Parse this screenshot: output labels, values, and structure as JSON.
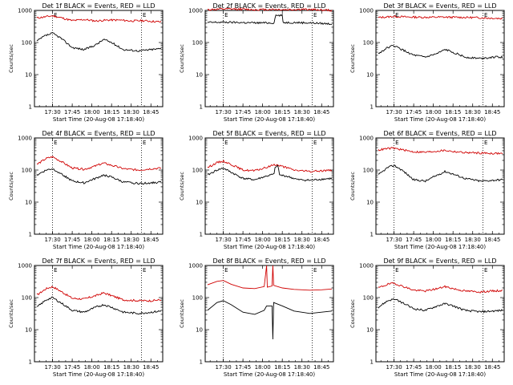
{
  "chart_data": {
    "type": "line",
    "x_tick_labels": [
      "17:30",
      "17:45",
      "18:00",
      "18:15",
      "18:30",
      "18:45"
    ],
    "y_tick_labels": [
      "1",
      "10",
      "100",
      "1000"
    ],
    "y_scale": "log",
    "ylim": [
      1,
      1000
    ],
    "x_range_hours": [
      17.27,
      18.9
    ],
    "marker_lines_hours": [
      17.5,
      18.63
    ],
    "colors": {
      "events": "#000000",
      "lld": "#d00000"
    },
    "panels": [
      {
        "title": "Det 1f BLACK = Events, RED = LLD",
        "xlabel": "Start Time (20-Aug-08 17:18:40)",
        "ylabel": "Counts/sec",
        "markers": [
          "E",
          "E"
        ],
        "lld": [
          [
            17.3,
            580
          ],
          [
            17.5,
            680
          ],
          [
            17.6,
            600
          ],
          [
            17.75,
            480
          ],
          [
            17.9,
            520
          ],
          [
            18.05,
            470
          ],
          [
            18.2,
            500
          ],
          [
            18.35,
            500
          ],
          [
            18.5,
            470
          ],
          [
            18.65,
            480
          ],
          [
            18.8,
            450
          ],
          [
            18.88,
            440
          ]
        ],
        "events": [
          [
            17.3,
            110
          ],
          [
            17.4,
            160
          ],
          [
            17.5,
            195
          ],
          [
            17.6,
            140
          ],
          [
            17.75,
            70
          ],
          [
            17.9,
            60
          ],
          [
            18.05,
            85
          ],
          [
            18.15,
            125
          ],
          [
            18.25,
            100
          ],
          [
            18.4,
            60
          ],
          [
            18.6,
            55
          ],
          [
            18.75,
            60
          ],
          [
            18.88,
            65
          ]
        ]
      },
      {
        "title": "Det 2f BLACK = Events, RED = LLD",
        "xlabel": "Start Time (20-Aug-08 17:18:40)",
        "ylabel": "Counts/sec",
        "markers": [
          "E",
          "E"
        ],
        "lld": [
          [
            17.3,
            1050
          ],
          [
            17.5,
            1100
          ],
          [
            17.7,
            1100
          ],
          [
            17.9,
            1050
          ],
          [
            18.1,
            1080
          ],
          [
            18.3,
            1050
          ],
          [
            18.5,
            1080
          ],
          [
            18.7,
            1050
          ],
          [
            18.88,
            1000
          ]
        ],
        "events": [
          [
            17.3,
            420
          ],
          [
            17.5,
            430
          ],
          [
            17.7,
            420
          ],
          [
            17.9,
            410
          ],
          [
            18.15,
            410
          ],
          [
            18.16,
            700
          ],
          [
            18.25,
            700
          ],
          [
            18.26,
            420
          ],
          [
            18.4,
            420
          ],
          [
            18.6,
            410
          ],
          [
            18.88,
            380
          ]
        ]
      },
      {
        "title": "Det 3f BLACK = Events, RED = LLD",
        "xlabel": "Start Time (20-Aug-08 17:18:40)",
        "ylabel": "Counts/sec",
        "markers": [
          "E",
          "E"
        ],
        "lld": [
          [
            17.3,
            600
          ],
          [
            17.5,
            650
          ],
          [
            17.7,
            620
          ],
          [
            17.9,
            610
          ],
          [
            18.1,
            620
          ],
          [
            18.3,
            610
          ],
          [
            18.5,
            600
          ],
          [
            18.7,
            580
          ],
          [
            18.88,
            560
          ]
        ],
        "events": [
          [
            17.3,
            45
          ],
          [
            17.42,
            70
          ],
          [
            17.5,
            80
          ],
          [
            17.6,
            60
          ],
          [
            17.75,
            40
          ],
          [
            17.9,
            35
          ],
          [
            18.05,
            45
          ],
          [
            18.15,
            60
          ],
          [
            18.25,
            50
          ],
          [
            18.4,
            35
          ],
          [
            18.6,
            32
          ],
          [
            18.75,
            35
          ],
          [
            18.88,
            35
          ]
        ]
      },
      {
        "title": "Det 4f BLACK = Events, RED = LLD",
        "xlabel": "Start Time (20-Aug-08 17:18:40)",
        "ylabel": "Counts/sec",
        "markers": [
          "E",
          "E"
        ],
        "lld": [
          [
            17.3,
            150
          ],
          [
            17.42,
            230
          ],
          [
            17.5,
            260
          ],
          [
            17.6,
            190
          ],
          [
            17.75,
            115
          ],
          [
            17.9,
            105
          ],
          [
            18.05,
            135
          ],
          [
            18.15,
            165
          ],
          [
            18.25,
            140
          ],
          [
            18.4,
            110
          ],
          [
            18.6,
            100
          ],
          [
            18.75,
            110
          ],
          [
            18.88,
            115
          ]
        ],
        "events": [
          [
            17.3,
            70
          ],
          [
            17.42,
            100
          ],
          [
            17.5,
            110
          ],
          [
            17.6,
            80
          ],
          [
            17.75,
            45
          ],
          [
            17.9,
            40
          ],
          [
            18.05,
            55
          ],
          [
            18.15,
            70
          ],
          [
            18.25,
            60
          ],
          [
            18.4,
            42
          ],
          [
            18.6,
            38
          ],
          [
            18.75,
            40
          ],
          [
            18.88,
            42
          ]
        ]
      },
      {
        "title": "Det 5f BLACK = Events, RED = LLD",
        "xlabel": "Start Time (20-Aug-08 17:18:40)",
        "ylabel": "Counts/sec",
        "markers": [
          "E",
          "E"
        ],
        "lld": [
          [
            17.3,
            120
          ],
          [
            17.42,
            170
          ],
          [
            17.5,
            190
          ],
          [
            17.6,
            150
          ],
          [
            17.75,
            100
          ],
          [
            17.9,
            95
          ],
          [
            18.05,
            120
          ],
          [
            18.15,
            150
          ],
          [
            18.25,
            130
          ],
          [
            18.4,
            100
          ],
          [
            18.6,
            90
          ],
          [
            18.75,
            95
          ],
          [
            18.88,
            100
          ]
        ],
        "events": [
          [
            17.3,
            70
          ],
          [
            17.42,
            100
          ],
          [
            17.5,
            115
          ],
          [
            17.6,
            85
          ],
          [
            17.75,
            55
          ],
          [
            17.9,
            50
          ],
          [
            18.05,
            65
          ],
          [
            18.15,
            75
          ],
          [
            18.16,
            130
          ],
          [
            18.2,
            130
          ],
          [
            18.21,
            70
          ],
          [
            18.3,
            65
          ],
          [
            18.45,
            50
          ],
          [
            18.6,
            48
          ],
          [
            18.75,
            52
          ],
          [
            18.88,
            55
          ]
        ]
      },
      {
        "title": "Det 6f BLACK = Events, RED = LLD",
        "xlabel": "Start Time (20-Aug-08 17:18:40)",
        "ylabel": "Counts/sec",
        "markers": [
          "E",
          "E"
        ],
        "lld": [
          [
            17.3,
            420
          ],
          [
            17.42,
            470
          ],
          [
            17.5,
            480
          ],
          [
            17.6,
            430
          ],
          [
            17.75,
            370
          ],
          [
            17.9,
            360
          ],
          [
            18.05,
            390
          ],
          [
            18.15,
            410
          ],
          [
            18.25,
            380
          ],
          [
            18.4,
            350
          ],
          [
            18.6,
            340
          ],
          [
            18.75,
            330
          ],
          [
            18.88,
            330
          ]
        ],
        "events": [
          [
            17.3,
            70
          ],
          [
            17.42,
            120
          ],
          [
            17.5,
            140
          ],
          [
            17.6,
            100
          ],
          [
            17.75,
            50
          ],
          [
            17.9,
            45
          ],
          [
            18.05,
            70
          ],
          [
            18.15,
            90
          ],
          [
            18.25,
            75
          ],
          [
            18.4,
            55
          ],
          [
            18.6,
            45
          ],
          [
            18.75,
            48
          ],
          [
            18.88,
            50
          ]
        ]
      },
      {
        "title": "Det 7f BLACK = Events, RED = LLD",
        "xlabel": "Start Time (20-Aug-08 17:18:40)",
        "ylabel": "Counts/sec",
        "markers": [
          "E",
          "E"
        ],
        "lld": [
          [
            17.3,
            120
          ],
          [
            17.42,
            190
          ],
          [
            17.5,
            220
          ],
          [
            17.6,
            160
          ],
          [
            17.75,
            95
          ],
          [
            17.9,
            90
          ],
          [
            18.05,
            115
          ],
          [
            18.15,
            140
          ],
          [
            18.25,
            115
          ],
          [
            18.4,
            85
          ],
          [
            18.6,
            80
          ],
          [
            18.75,
            80
          ],
          [
            18.88,
            85
          ]
        ],
        "events": [
          [
            17.3,
            50
          ],
          [
            17.42,
            85
          ],
          [
            17.5,
            100
          ],
          [
            17.6,
            70
          ],
          [
            17.75,
            40
          ],
          [
            17.9,
            35
          ],
          [
            18.05,
            50
          ],
          [
            18.15,
            60
          ],
          [
            18.25,
            50
          ],
          [
            18.4,
            35
          ],
          [
            18.6,
            32
          ],
          [
            18.75,
            35
          ],
          [
            18.88,
            38
          ]
        ]
      },
      {
        "title": "Det 8f BLACK = Events, RED = LLD",
        "xlabel": "Start Time (20-Aug-08 17:18:40)",
        "ylabel": "Counts/sec",
        "markers": [
          "E",
          "E"
        ],
        "lld": [
          [
            17.3,
            250
          ],
          [
            17.42,
            320
          ],
          [
            17.5,
            340
          ],
          [
            17.6,
            260
          ],
          [
            17.75,
            200
          ],
          [
            17.9,
            190
          ],
          [
            18.02,
            220
          ],
          [
            18.05,
            1000
          ],
          [
            18.06,
            210
          ],
          [
            18.12,
            230
          ],
          [
            18.13,
            1000
          ],
          [
            18.14,
            240
          ],
          [
            18.25,
            200
          ],
          [
            18.4,
            180
          ],
          [
            18.6,
            170
          ],
          [
            18.75,
            175
          ],
          [
            18.88,
            185
          ]
        ],
        "events": [
          [
            17.3,
            40
          ],
          [
            17.42,
            70
          ],
          [
            17.5,
            80
          ],
          [
            17.6,
            60
          ],
          [
            17.75,
            35
          ],
          [
            17.9,
            30
          ],
          [
            18.02,
            40
          ],
          [
            18.05,
            55
          ],
          [
            18.12,
            55
          ],
          [
            18.13,
            5
          ],
          [
            18.14,
            70
          ],
          [
            18.25,
            55
          ],
          [
            18.4,
            38
          ],
          [
            18.6,
            32
          ],
          [
            18.75,
            35
          ],
          [
            18.88,
            38
          ]
        ]
      },
      {
        "title": "Det 9f BLACK = Events, RED = LLD",
        "xlabel": "Start Time (20-Aug-08 17:18:40)",
        "ylabel": "Counts/sec",
        "markers": [
          "E",
          "E"
        ],
        "lld": [
          [
            17.3,
            200
          ],
          [
            17.42,
            260
          ],
          [
            17.5,
            280
          ],
          [
            17.6,
            230
          ],
          [
            17.75,
            170
          ],
          [
            17.9,
            160
          ],
          [
            18.05,
            190
          ],
          [
            18.15,
            220
          ],
          [
            18.25,
            190
          ],
          [
            18.4,
            160
          ],
          [
            18.6,
            150
          ],
          [
            18.75,
            160
          ],
          [
            18.88,
            165
          ]
        ],
        "events": [
          [
            17.3,
            50
          ],
          [
            17.42,
            80
          ],
          [
            17.5,
            90
          ],
          [
            17.6,
            70
          ],
          [
            17.75,
            45
          ],
          [
            17.9,
            40
          ],
          [
            18.05,
            55
          ],
          [
            18.15,
            65
          ],
          [
            18.25,
            55
          ],
          [
            18.4,
            40
          ],
          [
            18.6,
            36
          ],
          [
            18.75,
            38
          ],
          [
            18.88,
            40
          ]
        ]
      }
    ]
  }
}
